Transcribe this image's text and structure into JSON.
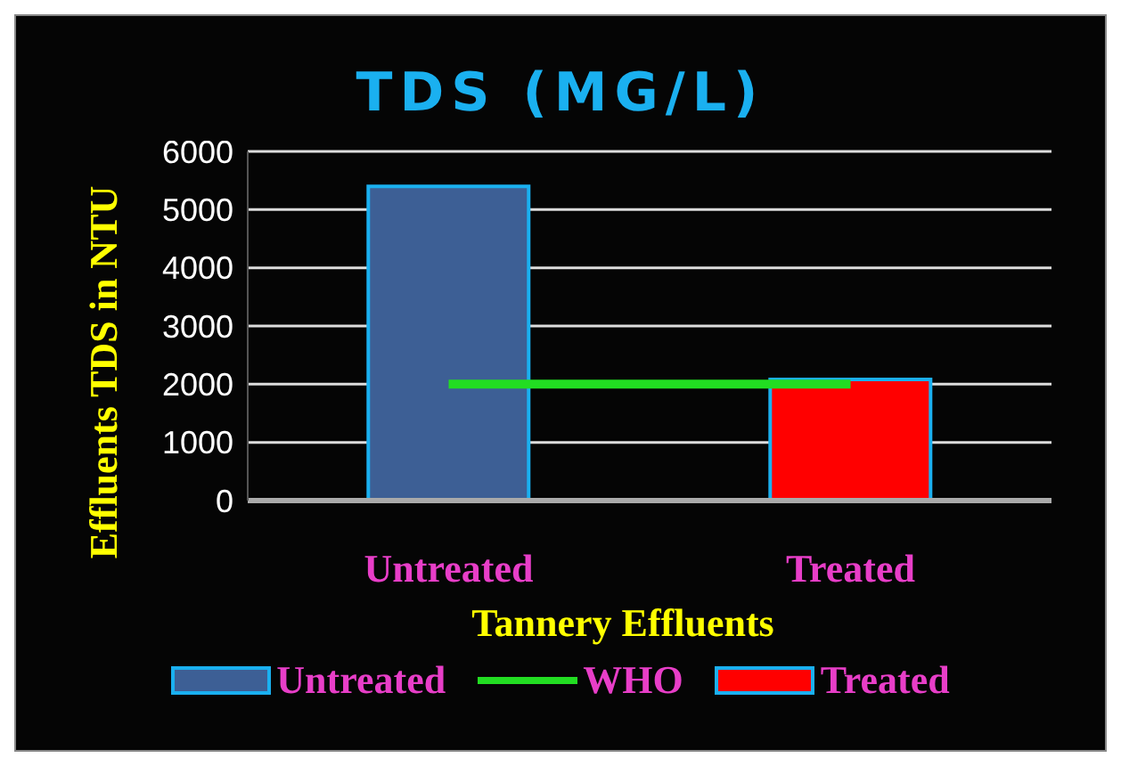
{
  "chart_data": {
    "type": "bar",
    "title": "TDS (MG/L)",
    "xlabel": "Tannery Effluents",
    "ylabel": "Effluents TDS in NTU",
    "categories": [
      "Untreated",
      "Treated"
    ],
    "series": [
      {
        "name": "Untreated",
        "color": "#3d5f95",
        "values": [
          5400,
          null
        ]
      },
      {
        "name": "WHO",
        "type": "line",
        "color": "#22dd22",
        "values": [
          2000,
          2000
        ]
      },
      {
        "name": "Treated",
        "color": "#ff0000",
        "values": [
          null,
          2080
        ]
      }
    ],
    "stacked": true,
    "ylim": [
      0,
      6000
    ],
    "yticks": [
      0,
      1000,
      2000,
      3000,
      4000,
      5000,
      6000
    ],
    "grid": "y",
    "legend": "bottom",
    "marker": "none"
  }
}
